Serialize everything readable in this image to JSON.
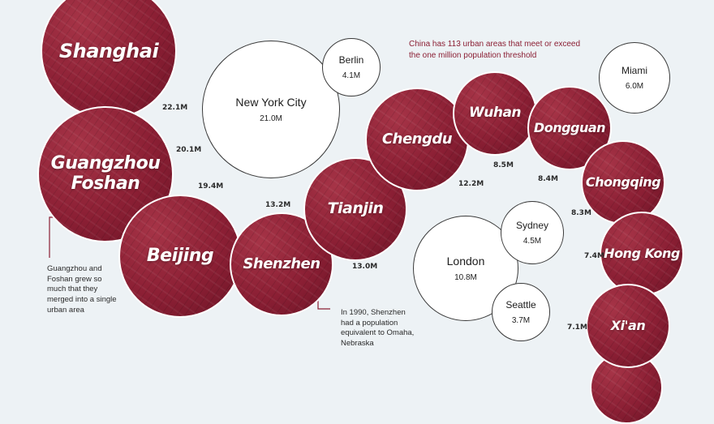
{
  "colors": {
    "china_fill": "#8b1f34",
    "background": "#edf2f5",
    "annotation": "#8b1f34"
  },
  "china_cities": [
    {
      "name_lines": [
        "Shanghai"
      ],
      "population": "22.1M"
    },
    {
      "name_lines": [
        "Guangzhou",
        "Foshan"
      ],
      "population": "20.1M"
    },
    {
      "name_lines": [
        "Beijing"
      ],
      "population": "19.4M"
    },
    {
      "name_lines": [
        "Shenzhen"
      ],
      "population": "13.2M"
    },
    {
      "name_lines": [
        "Tianjin"
      ],
      "population": "13.0M"
    },
    {
      "name_lines": [
        "Chengdu"
      ],
      "population": "12.2M"
    },
    {
      "name_lines": [
        "Wuhan"
      ],
      "population": "8.5M"
    },
    {
      "name_lines": [
        "Dongguan"
      ],
      "population": "8.4M"
    },
    {
      "name_lines": [
        "Chongqing"
      ],
      "population": "8.3M"
    },
    {
      "name_lines": [
        "Hong Kong"
      ],
      "population": "7.4M"
    },
    {
      "name_lines": [
        "Xi'an"
      ],
      "population": "7.1M"
    }
  ],
  "world_cities": [
    {
      "name": "New York City",
      "population": "21.0M"
    },
    {
      "name": "Berlin",
      "population": "4.1M"
    },
    {
      "name": "Miami",
      "population": "6.0M"
    },
    {
      "name": "London",
      "population": "10.8M"
    },
    {
      "name": "Sydney",
      "population": "4.5M"
    },
    {
      "name": "Seattle",
      "population": "3.7M"
    }
  ],
  "annotations": {
    "top_right": "China has 113 urban areas that meet or exceed the one million population threshold",
    "guangzhou_note": "Guangzhou and Foshan grew so much that they merged into a single urban area",
    "shenzhen_note": "In 1990, Shenzhen had a population equivalent to Omaha, Nebraska"
  }
}
